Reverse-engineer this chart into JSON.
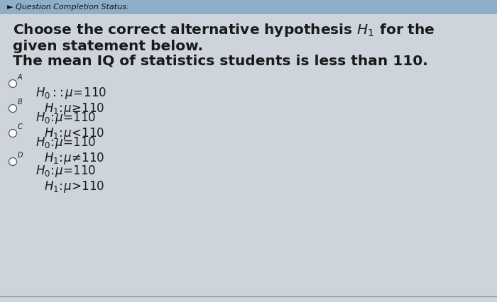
{
  "header_text": "► Question Completion Status:",
  "header_bg": "#8faec8",
  "body_bg": "#cdd4dc",
  "title_line1": "Choose the correct alternative hypothesis $H_1$ for the",
  "title_line2": "given statement below.",
  "statement": "The mean IQ of statistics students is less than 110.",
  "options": [
    {
      "label": "A",
      "h0": "$H_0:\\!:\\mu\\!=\\!110$",
      "h1": "$H_1\\!:\\!\\mu\\!\\geq\\!110$"
    },
    {
      "label": "B",
      "h0": "$H_0\\!:\\!\\mu\\!=\\!110$",
      "h1": "$H_1\\!:\\!\\mu\\!<\\!110$"
    },
    {
      "label": "C",
      "h0": "$H_0\\!:\\!\\mu\\!=\\!110$",
      "h1": "$H_1\\!:\\!\\mu\\!\\neq\\!110$"
    },
    {
      "label": "D",
      "h0": "$H_0\\!:\\!\\mu\\!=\\!110$",
      "h1": "$H_1\\!:\\!\\mu\\!>\\!110$"
    }
  ],
  "title_fontsize": 14.5,
  "statement_fontsize": 14.5,
  "option_fontsize": 12,
  "header_fontsize": 8,
  "text_color": "#1a1a1a"
}
